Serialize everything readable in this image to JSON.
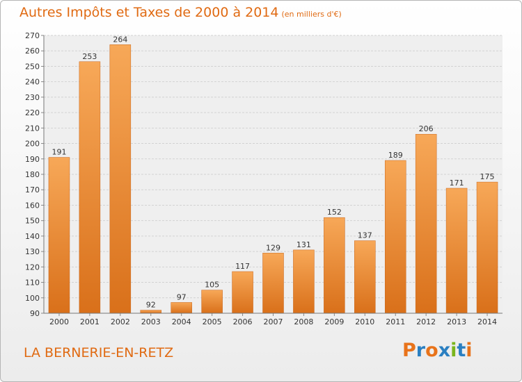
{
  "header": {
    "title": "Autres Impôts et Taxes de 2000 à 2014",
    "subtitle": "(en milliers d'€)"
  },
  "footer": {
    "commune": "LA BERNERIE-EN-RETZ",
    "logo": [
      "P",
      "r",
      "o",
      "x",
      "i",
      "t",
      "i"
    ],
    "logo_colors": [
      "#e8731a",
      "#2a7fc1",
      "#e8731a",
      "#2a7fc1",
      "#7ab51d",
      "#2a7fc1",
      "#e8731a"
    ]
  },
  "chart_data": {
    "type": "bar",
    "categories": [
      "2000",
      "2001",
      "2002",
      "2003",
      "2004",
      "2005",
      "2006",
      "2007",
      "2008",
      "2009",
      "2010",
      "2011",
      "2012",
      "2013",
      "2014"
    ],
    "values": [
      191,
      253,
      264,
      92,
      97,
      105,
      117,
      129,
      131,
      152,
      137,
      189,
      206,
      171,
      175
    ],
    "data_labels": [
      "191",
      "253",
      "264",
      "92",
      "97",
      "105",
      "117",
      "129",
      "131",
      "152",
      "137",
      "189",
      "206",
      "171",
      "175"
    ],
    "title": "Autres Impôts et Taxes de 2000 à 2014",
    "ylim": [
      90,
      270
    ],
    "yticks": [
      "90",
      "100",
      "110",
      "120",
      "130",
      "140",
      "150",
      "160",
      "170",
      "180",
      "190",
      "200",
      "210",
      "220",
      "230",
      "240",
      "250",
      "260",
      "270"
    ],
    "grid": true,
    "bar_color": "#f0892e"
  }
}
